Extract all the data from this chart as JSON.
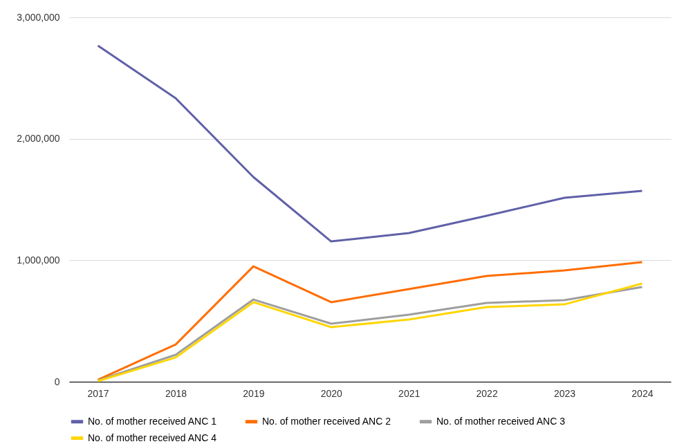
{
  "chart_data": {
    "type": "line",
    "categories": [
      "2017",
      "2018",
      "2019",
      "2020",
      "2021",
      "2022",
      "2023",
      "2024"
    ],
    "series": [
      {
        "name": "No. of mother received ANC 1",
        "color": "#6060a8",
        "values": [
          2766000,
          2334000,
          1685000,
          1155000,
          1224000,
          1366000,
          1514000,
          1571000
        ]
      },
      {
        "name": "No. of mother received ANC 2",
        "color": "#ff6d00",
        "values": [
          17000,
          307000,
          950000,
          655000,
          763000,
          871000,
          916000,
          985000
        ]
      },
      {
        "name": "No. of mother received ANC 3",
        "color": "#9e9e9e",
        "values": [
          11000,
          222000,
          677000,
          478000,
          552000,
          649000,
          672000,
          780000
        ]
      },
      {
        "name": "No. of mother received ANC 4",
        "color": "#ffd600",
        "values": [
          6000,
          200000,
          655000,
          450000,
          512000,
          615000,
          637000,
          808000
        ]
      }
    ],
    "ylim": [
      0,
      3000000
    ],
    "yticks": [
      0,
      {
        "value": 1000000,
        "label": "1,000,000"
      },
      {
        "value": 2000000,
        "label": "2,000,000"
      },
      {
        "value": 3000000,
        "label": "3,000,000"
      }
    ],
    "grid": "y",
    "legend": "bottom",
    "marker": "none",
    "line_style": "solid"
  }
}
